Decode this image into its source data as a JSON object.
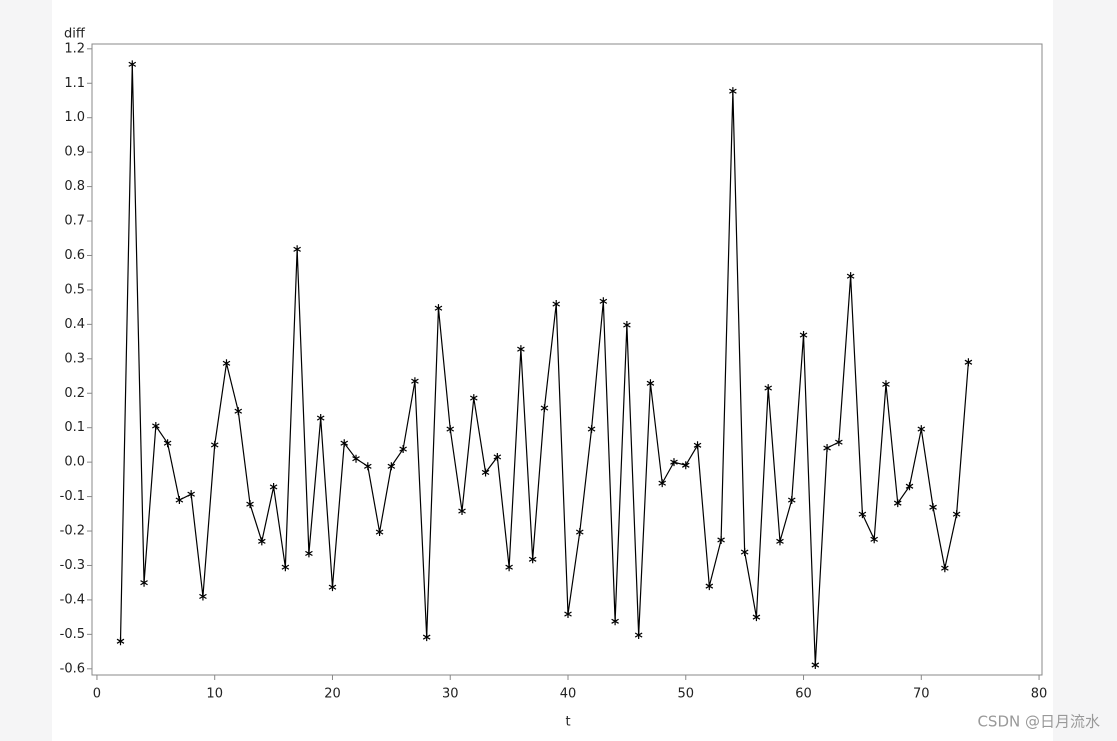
{
  "chart_data": {
    "type": "line",
    "y_label": "diff",
    "x_label": "t",
    "x": [
      2,
      3,
      4,
      5,
      6,
      7,
      8,
      9,
      10,
      11,
      12,
      13,
      14,
      15,
      16,
      17,
      18,
      19,
      20,
      21,
      22,
      23,
      24,
      25,
      26,
      27,
      28,
      29,
      30,
      31,
      32,
      33,
      34,
      35,
      36,
      37,
      38,
      39,
      40,
      41,
      42,
      43,
      44,
      45,
      46,
      47,
      48,
      49,
      50,
      51,
      52,
      53,
      54,
      55,
      56,
      57,
      58,
      59,
      60,
      61,
      62,
      63,
      64,
      65,
      66,
      67,
      68,
      69,
      70,
      71,
      72,
      73,
      74
    ],
    "values": [
      -0.52,
      1.155,
      -0.35,
      0.105,
      0.055,
      -0.11,
      -0.093,
      -0.39,
      0.05,
      0.287,
      0.148,
      -0.122,
      -0.23,
      -0.072,
      -0.305,
      0.618,
      -0.265,
      0.128,
      -0.363,
      0.055,
      0.01,
      -0.012,
      -0.203,
      -0.012,
      0.038,
      0.235,
      -0.508,
      0.447,
      0.096,
      -0.142,
      0.186,
      -0.03,
      0.015,
      -0.305,
      0.328,
      -0.282,
      0.157,
      0.459,
      -0.441,
      -0.203,
      0.096,
      0.467,
      -0.462,
      0.398,
      -0.502,
      0.229,
      -0.061,
      0.0,
      -0.009,
      0.049,
      -0.36,
      -0.226,
      1.077,
      -0.261,
      -0.45,
      0.215,
      -0.23,
      -0.11,
      0.369,
      -0.589,
      0.041,
      0.058,
      0.54,
      -0.151,
      -0.224,
      0.226,
      -0.119,
      -0.07,
      0.096,
      -0.131,
      -0.308,
      -0.151,
      0.29
    ],
    "color": "#000000",
    "xlim": [
      -0.42,
      80.25
    ],
    "xticks": [
      0,
      10,
      20,
      30,
      40,
      50,
      60,
      70,
      80
    ],
    "ylim": [
      -0.618,
      1.214
    ],
    "yticks": [
      -0.6,
      -0.5,
      -0.4,
      -0.3,
      -0.2,
      -0.1,
      {
        "value": 0,
        "label": "0.0"
      },
      0.1,
      0.2,
      0.3,
      0.4,
      0.5,
      0.6,
      0.7,
      0.8,
      0.9,
      {
        "value": 1,
        "label": "1.0"
      },
      1.1,
      1.2
    ],
    "watermark": "CSDN @日月流水"
  }
}
